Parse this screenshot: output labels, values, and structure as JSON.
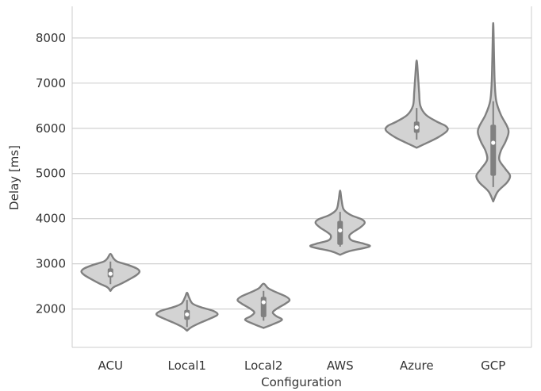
{
  "chart_data": {
    "type": "violin",
    "title": "",
    "xlabel": "Configuration",
    "ylabel": "Delay [ms]",
    "ylim": [
      1150,
      8700
    ],
    "yticks": [
      2000,
      3000,
      4000,
      5000,
      6000,
      7000,
      8000
    ],
    "grid": "horizontal",
    "legend": "none",
    "colors": {
      "violin_fill": "#d3d3d3",
      "violin_edge": "#808080",
      "box": "#808080",
      "median": "#ffffff",
      "grid": "#d0d0d0",
      "spine": "#cccccc"
    },
    "categories": [
      "ACU",
      "Local1",
      "Local2",
      "AWS",
      "Azure",
      "GCP"
    ],
    "series": [
      {
        "category": "ACU",
        "median": 2780,
        "q1": 2700,
        "q3": 2900,
        "whisker_low": 2550,
        "whisker_high": 3050,
        "min": 2400,
        "max": 3220,
        "density": [
          [
            2400,
            0.0
          ],
          [
            2480,
            0.1
          ],
          [
            2560,
            0.35
          ],
          [
            2650,
            0.6
          ],
          [
            2750,
            0.85
          ],
          [
            2830,
            0.95
          ],
          [
            2900,
            0.85
          ],
          [
            2980,
            0.55
          ],
          [
            3050,
            0.22
          ],
          [
            3120,
            0.1
          ],
          [
            3220,
            0.0
          ]
        ]
      },
      {
        "category": "Local1",
        "median": 1880,
        "q1": 1760,
        "q3": 1980,
        "whisker_low": 1600,
        "whisker_high": 2200,
        "min": 1520,
        "max": 2360,
        "density": [
          [
            1520,
            0.0
          ],
          [
            1600,
            0.15
          ],
          [
            1700,
            0.45
          ],
          [
            1800,
            0.8
          ],
          [
            1880,
            1.0
          ],
          [
            1960,
            0.85
          ],
          [
            2040,
            0.45
          ],
          [
            2120,
            0.18
          ],
          [
            2250,
            0.07
          ],
          [
            2360,
            0.0
          ]
        ]
      },
      {
        "category": "Local2",
        "median": 2150,
        "q1": 1820,
        "q3": 2270,
        "whisker_low": 1740,
        "whisker_high": 2400,
        "min": 1580,
        "max": 2560,
        "density": [
          [
            1580,
            0.0
          ],
          [
            1660,
            0.3
          ],
          [
            1760,
            0.6
          ],
          [
            1840,
            0.42
          ],
          [
            1920,
            0.3
          ],
          [
            2000,
            0.42
          ],
          [
            2120,
            0.72
          ],
          [
            2200,
            0.85
          ],
          [
            2280,
            0.72
          ],
          [
            2380,
            0.38
          ],
          [
            2460,
            0.15
          ],
          [
            2560,
            0.0
          ]
        ]
      },
      {
        "category": "AWS",
        "median": 3740,
        "q1": 3420,
        "q3": 3950,
        "whisker_low": 3380,
        "whisker_high": 4150,
        "min": 3200,
        "max": 4620,
        "density": [
          [
            3200,
            0.0
          ],
          [
            3280,
            0.3
          ],
          [
            3380,
            0.95
          ],
          [
            3440,
            0.8
          ],
          [
            3520,
            0.38
          ],
          [
            3620,
            0.3
          ],
          [
            3700,
            0.42
          ],
          [
            3800,
            0.65
          ],
          [
            3900,
            0.8
          ],
          [
            3980,
            0.72
          ],
          [
            4080,
            0.35
          ],
          [
            4200,
            0.12
          ],
          [
            4400,
            0.05
          ],
          [
            4620,
            0.0
          ]
        ]
      },
      {
        "category": "Azure",
        "median": 6020,
        "q1": 5900,
        "q3": 6150,
        "whisker_low": 5750,
        "whisker_high": 6450,
        "min": 5570,
        "max": 7500,
        "density": [
          [
            5570,
            0.0
          ],
          [
            5650,
            0.25
          ],
          [
            5800,
            0.7
          ],
          [
            5950,
            1.0
          ],
          [
            6050,
            0.95
          ],
          [
            6150,
            0.65
          ],
          [
            6300,
            0.3
          ],
          [
            6500,
            0.12
          ],
          [
            6800,
            0.08
          ],
          [
            7100,
            0.05
          ],
          [
            7500,
            0.0
          ]
        ]
      },
      {
        "category": "GCP",
        "median": 5680,
        "q1": 4950,
        "q3": 6080,
        "whisker_low": 4700,
        "whisker_high": 6600,
        "min": 4380,
        "max": 8330,
        "density": [
          [
            4380,
            0.0
          ],
          [
            4600,
            0.15
          ],
          [
            4800,
            0.45
          ],
          [
            4950,
            0.55
          ],
          [
            5100,
            0.4
          ],
          [
            5300,
            0.2
          ],
          [
            5500,
            0.25
          ],
          [
            5700,
            0.4
          ],
          [
            5900,
            0.5
          ],
          [
            6050,
            0.45
          ],
          [
            6300,
            0.25
          ],
          [
            6600,
            0.1
          ],
          [
            7000,
            0.05
          ],
          [
            7500,
            0.03
          ],
          [
            8330,
            0.0
          ]
        ]
      }
    ]
  }
}
